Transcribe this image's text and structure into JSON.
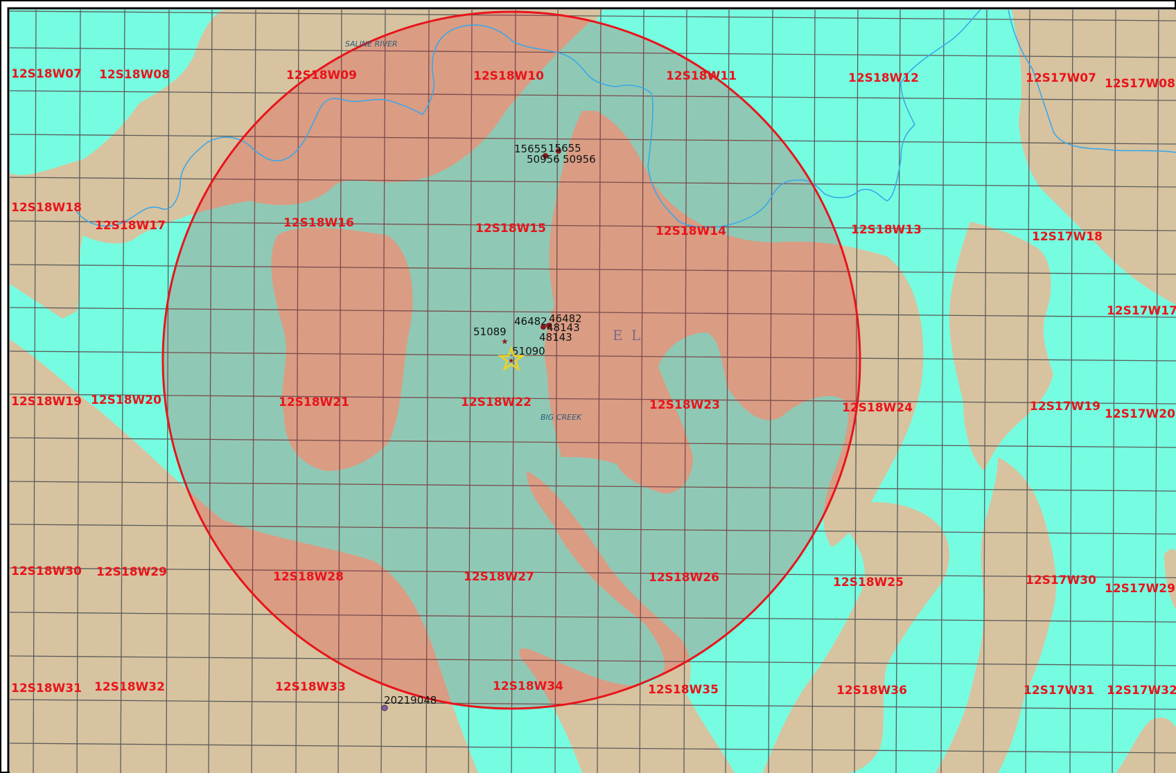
{
  "map": {
    "colors": {
      "water_zone": "#76fde1",
      "land_zone": "#d7c3a0",
      "grid_line": "#5b5b5b",
      "buffer_ring": "#e8141b",
      "buffer_fill": "#e8141b",
      "river": "#3aa7e8",
      "section_label": "#e8141b",
      "well_marker": "#8b1a1a",
      "site_marker": "#f2d21b",
      "other_well": "#8a5ab0"
    },
    "river_labels": {
      "saline_river": "SALINE RIVER",
      "big_creek": "BIG CREEK"
    },
    "geology_label": "E L",
    "sections": [
      {
        "id": "12S18W07"
      },
      {
        "id": "12S18W08"
      },
      {
        "id": "12S18W09"
      },
      {
        "id": "12S18W10"
      },
      {
        "id": "12S18W11"
      },
      {
        "id": "12S18W12"
      },
      {
        "id": "12S17W07"
      },
      {
        "id": "12S17W08"
      },
      {
        "id": "12S18W18"
      },
      {
        "id": "12S18W17"
      },
      {
        "id": "12S18W16"
      },
      {
        "id": "12S18W15"
      },
      {
        "id": "12S18W14"
      },
      {
        "id": "12S18W13"
      },
      {
        "id": "12S17W18"
      },
      {
        "id": "12S17W17"
      },
      {
        "id": "12S18W19"
      },
      {
        "id": "12S18W20"
      },
      {
        "id": "12S18W21"
      },
      {
        "id": "12S18W22"
      },
      {
        "id": "12S18W23"
      },
      {
        "id": "12S18W24"
      },
      {
        "id": "12S17W19"
      },
      {
        "id": "12S17W20"
      },
      {
        "id": "12S18W30"
      },
      {
        "id": "12S18W29"
      },
      {
        "id": "12S18W28"
      },
      {
        "id": "12S18W27"
      },
      {
        "id": "12S18W26"
      },
      {
        "id": "12S18W25"
      },
      {
        "id": "12S17W30"
      },
      {
        "id": "12S17W29"
      },
      {
        "id": "12S18W31"
      },
      {
        "id": "12S18W32"
      },
      {
        "id": "12S18W33"
      },
      {
        "id": "12S18W34"
      },
      {
        "id": "12S18W35"
      },
      {
        "id": "12S18W36"
      },
      {
        "id": "12S17W31"
      },
      {
        "id": "12S17W32"
      }
    ],
    "wells": [
      {
        "id": "15655"
      },
      {
        "id": "15655"
      },
      {
        "id": "50956"
      },
      {
        "id": "50956"
      },
      {
        "id": "46482"
      },
      {
        "id": "46482"
      },
      {
        "id": "48143"
      },
      {
        "id": "48143"
      },
      {
        "id": "51089"
      },
      {
        "id": "51090"
      },
      {
        "id": "20219048"
      }
    ]
  }
}
